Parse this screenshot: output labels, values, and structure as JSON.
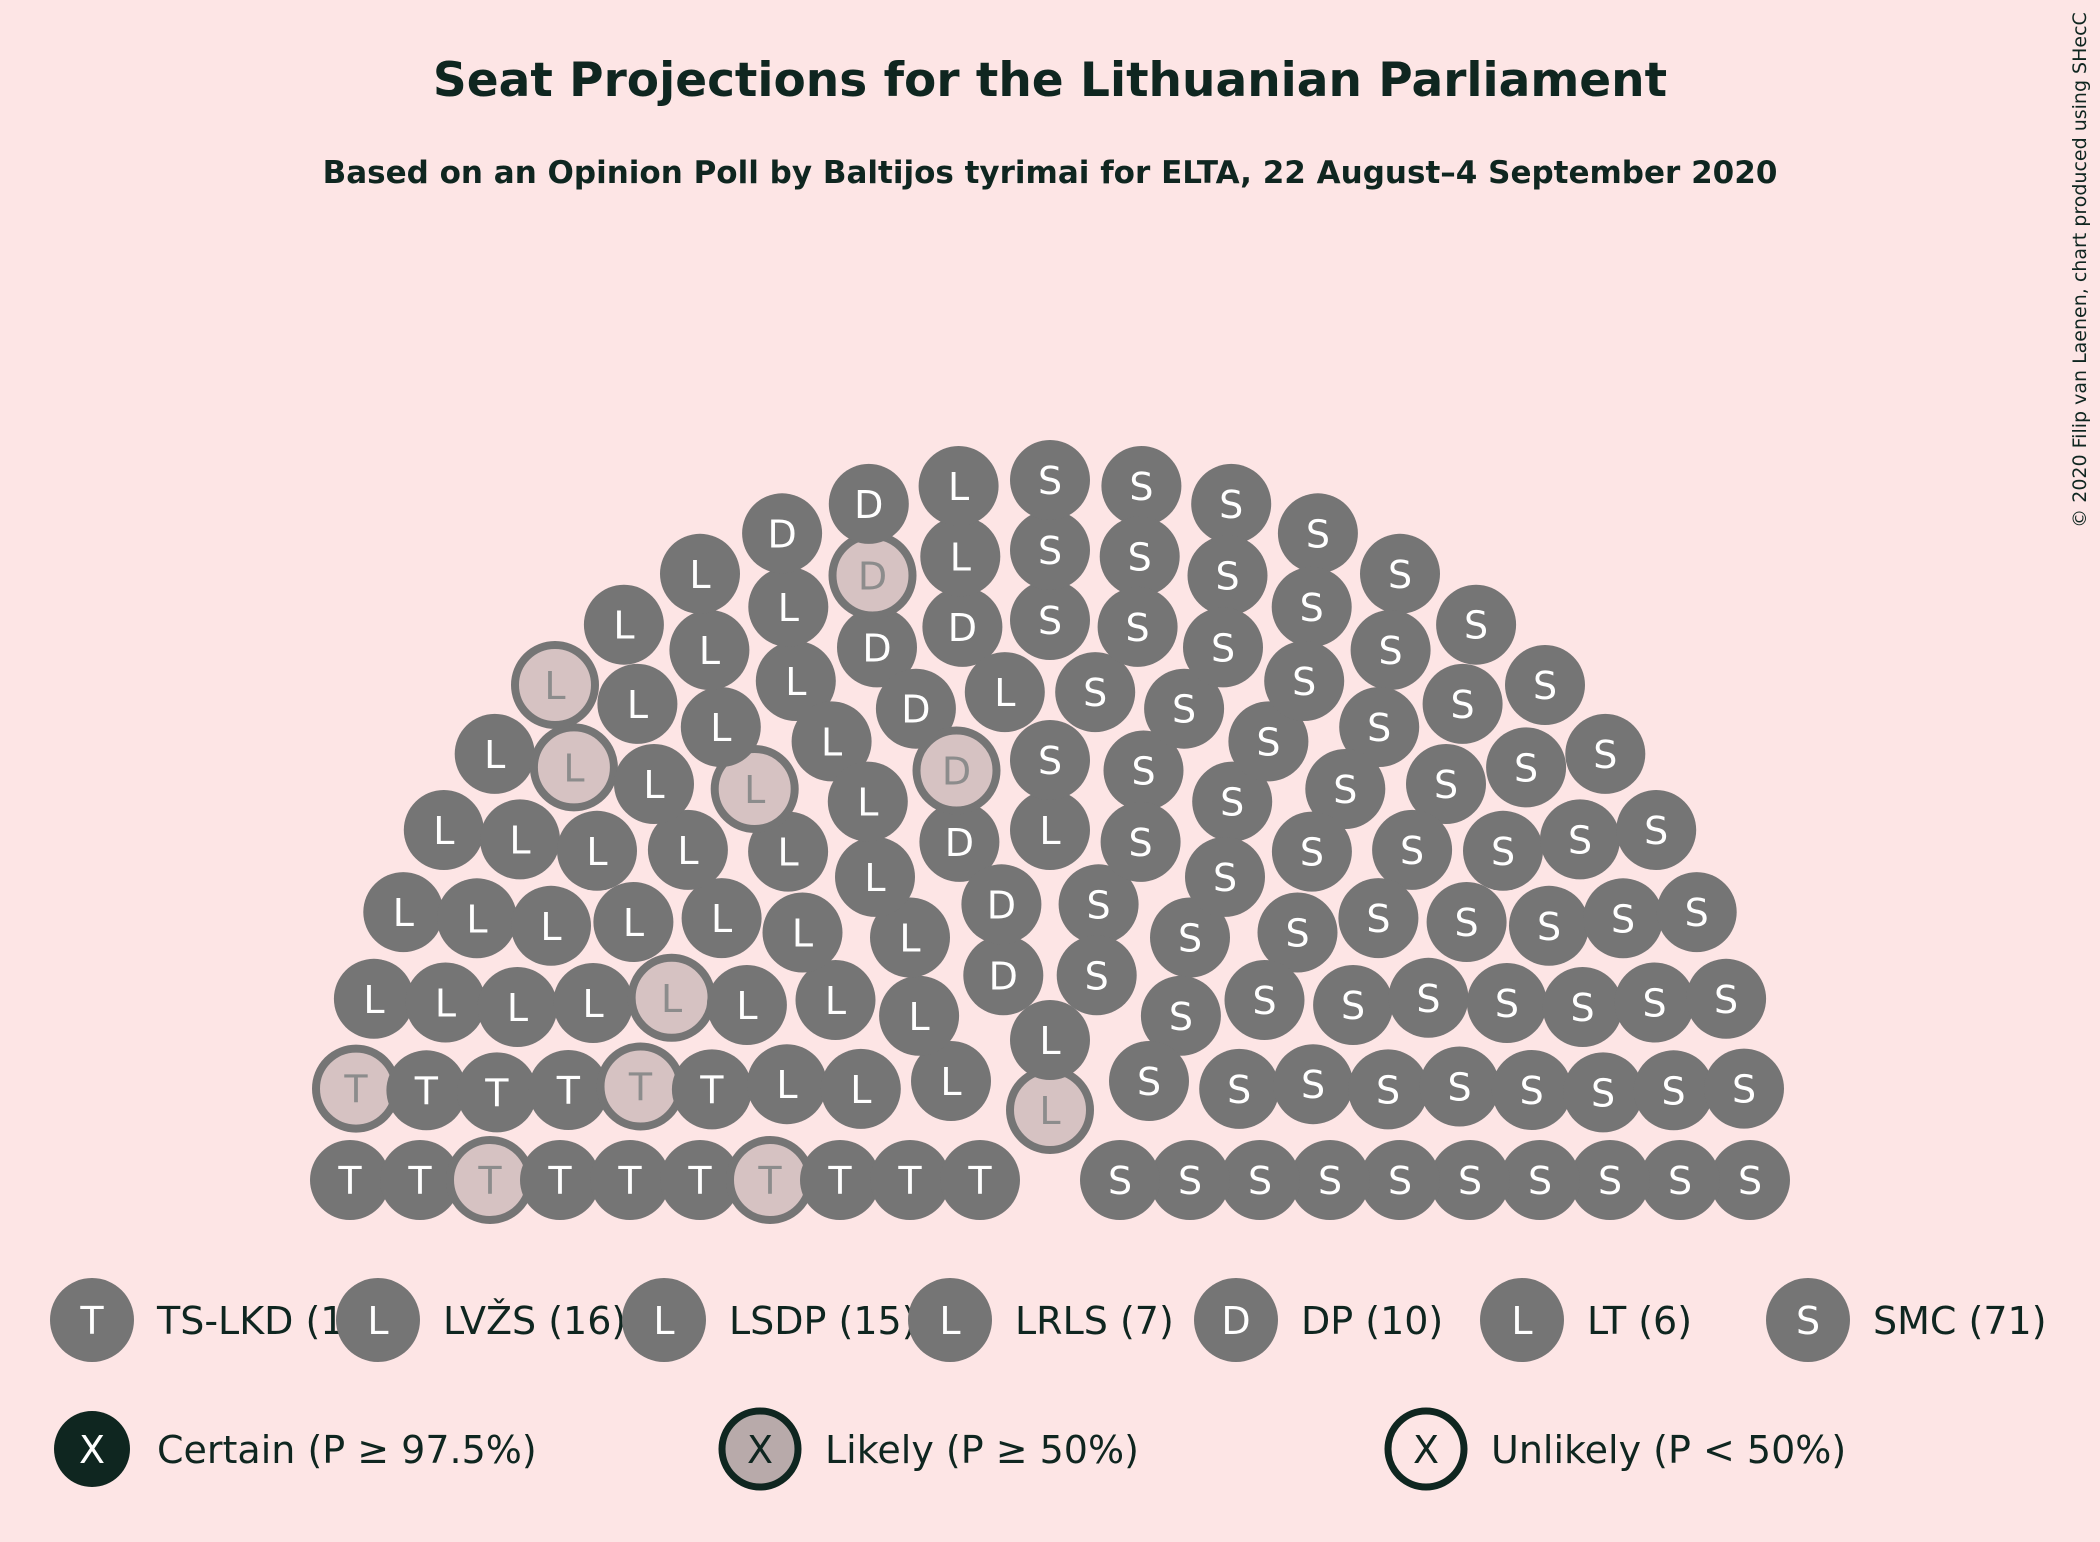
{
  "chart_data": {
    "type": "parliament",
    "title": "Seat Projections for the Lithuanian Parliament",
    "subtitle": "Based on an Opinion Poll by Baltijos tyrimai for ELTA, 22 August–4 September 2020",
    "copyright": "© 2020 Filip van Laenen, chart produced using SHecC",
    "total_seats": 141,
    "parties": [
      {
        "letter": "T",
        "legend": "TS-LKD (1",
        "seats": 16,
        "likely": 4
      },
      {
        "letter": "L",
        "legend": "LVŽS (16)",
        "seats": 16,
        "likely": 1
      },
      {
        "letter": "L",
        "legend": "LSDP (15)",
        "seats": 15,
        "likely": 3
      },
      {
        "letter": "L",
        "legend": "LRLS (7)",
        "seats": 7,
        "likely": 0
      },
      {
        "letter": "D",
        "legend": "DP (10)",
        "seats": 10,
        "likely": 2
      },
      {
        "letter": "L",
        "legend": "LT (6)",
        "seats": 6,
        "likely": 1
      },
      {
        "letter": "S",
        "legend": "SMC (71)",
        "seats": 71,
        "likely": 0
      }
    ],
    "certainty_legend": [
      {
        "symbol": "X",
        "label": "Certain (P ≥ 97.5%)",
        "style": "certain"
      },
      {
        "symbol": "X",
        "label": "Likely (P ≥ 50%)",
        "style": "likely"
      },
      {
        "symbol": "X",
        "label": "Unlikely (P < 50%)",
        "style": "unlikely"
      }
    ],
    "colors": {
      "background": "#FDE5E5",
      "seat": "#757575",
      "likely_fill": "#D6C2C2",
      "likely_text": "#8C8C8C",
      "certain": "#0F2620",
      "text": "#0F2620"
    }
  }
}
